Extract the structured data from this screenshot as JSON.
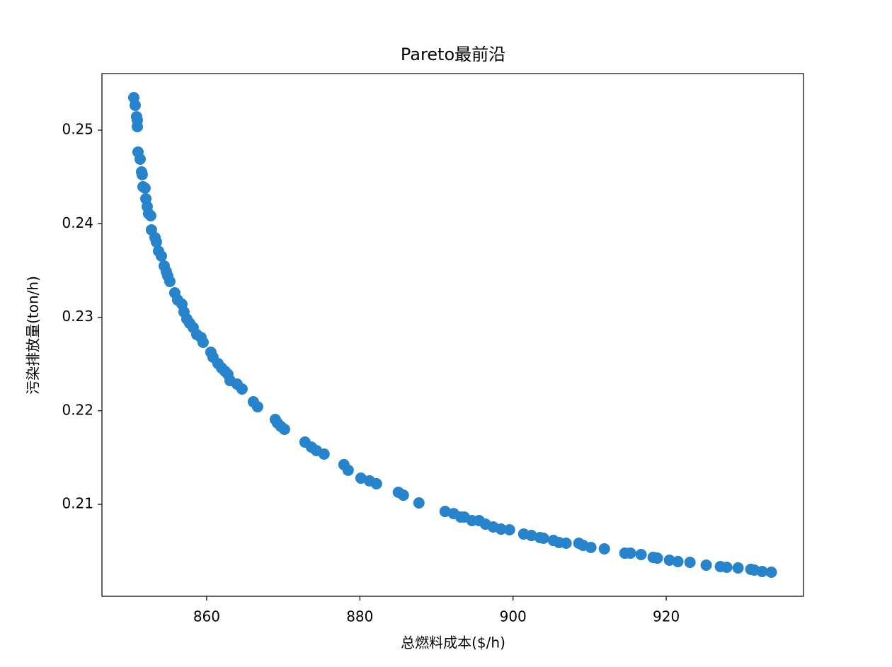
{
  "chart_data": {
    "type": "scatter",
    "title": "Pareto最前沿",
    "x_label": "总燃料成本($/h)",
    "y_label": "污染排放量(ton/h)",
    "color": "#2784cc",
    "xlim": [
      846.33,
      937.92
    ],
    "ylim": [
      0.20017,
      0.25605
    ],
    "xticks": [
      860,
      880,
      900,
      920
    ],
    "yticks": [
      0.21,
      0.22,
      0.23,
      0.24,
      0.25
    ],
    "grid": false,
    "x": [
      850.49,
      850.67,
      850.85,
      850.95,
      850.95,
      851.04,
      851.32,
      851.5,
      851.59,
      851.69,
      851.96,
      852.06,
      852.24,
      852.42,
      852.7,
      852.79,
      853.26,
      853.44,
      853.72,
      854.09,
      854.46,
      854.73,
      854.92,
      855.2,
      855.84,
      856.21,
      856.77,
      857.04,
      857.41,
      857.78,
      858.24,
      858.71,
      859.26,
      859.54,
      860.55,
      860.83,
      861.48,
      861.94,
      862.4,
      862.77,
      863.05,
      863.97,
      864.62,
      866.1,
      866.65,
      868.96,
      869.24,
      869.7,
      870.16,
      872.84,
      873.67,
      874.32,
      875.33,
      877.92,
      878.48,
      880.14,
      881.25,
      882.17,
      885.03,
      885.68,
      887.71,
      891.13,
      892.24,
      893.16,
      893.63,
      894.64,
      895.57,
      896.4,
      897.41,
      898.43,
      899.54,
      901.39,
      902.4,
      903.51,
      903.97,
      905.27,
      906.0,
      906.93,
      908.59,
      909.15,
      910.16,
      911.92,
      914.6,
      915.33,
      916.72,
      918.29,
      918.84,
      920.42,
      921.52,
      923.1,
      925.22,
      927.07,
      927.9,
      929.38,
      931.04,
      931.5,
      932.52,
      933.72
    ],
    "values": [
      0.25348,
      0.25265,
      0.25144,
      0.25106,
      0.25038,
      0.24766,
      0.2469,
      0.24554,
      0.24524,
      0.24395,
      0.2438,
      0.24267,
      0.24183,
      0.24108,
      0.24085,
      0.23934,
      0.23851,
      0.23805,
      0.23707,
      0.23654,
      0.23548,
      0.23488,
      0.23442,
      0.23382,
      0.23261,
      0.23185,
      0.2314,
      0.23057,
      0.22981,
      0.22936,
      0.2289,
      0.22815,
      0.22784,
      0.22732,
      0.22626,
      0.22573,
      0.22505,
      0.22459,
      0.22422,
      0.22391,
      0.22323,
      0.22285,
      0.22233,
      0.22096,
      0.22043,
      0.21907,
      0.2187,
      0.21832,
      0.21802,
      0.21665,
      0.21612,
      0.21575,
      0.21537,
      0.21424,
      0.21364,
      0.2128,
      0.21251,
      0.2122,
      0.21129,
      0.21098,
      0.21015,
      0.20924,
      0.20901,
      0.20864,
      0.20864,
      0.20826,
      0.20826,
      0.20788,
      0.20758,
      0.20735,
      0.20728,
      0.20682,
      0.20667,
      0.20645,
      0.20637,
      0.20614,
      0.20592,
      0.20584,
      0.20584,
      0.20561,
      0.20539,
      0.20524,
      0.20478,
      0.20478,
      0.20463,
      0.20433,
      0.20425,
      0.20403,
      0.20388,
      0.2038,
      0.2035,
      0.20335,
      0.20327,
      0.2032,
      0.20305,
      0.20297,
      0.20282,
      0.20274
    ]
  }
}
